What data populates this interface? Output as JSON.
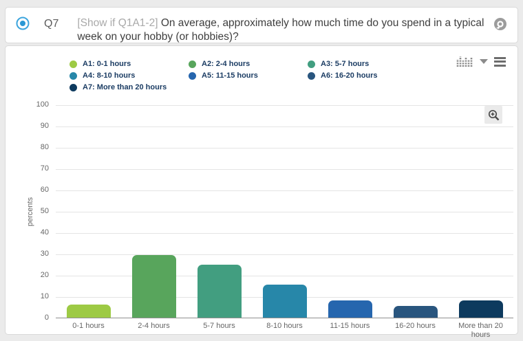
{
  "header": {
    "question_id": "Q7",
    "condition_tag": "[Show if Q1A1-2]",
    "question_text": "On average, approximately how much time do you spend in a typical week on your hobby (or hobbies)?"
  },
  "icons": {
    "radio_selected": "blue-radio-selected",
    "question_action": "comment-bubble",
    "chart_type": "column-chart",
    "chart_type_caret": "▼",
    "menu": "hamburger",
    "zoom": "zoom-in-magnifier"
  },
  "legend": {
    "items": [
      {
        "label": "A1: 0-1 hours",
        "color": "#9dca44"
      },
      {
        "label": "A2: 2-4 hours",
        "color": "#58a55c"
      },
      {
        "label": "A3: 5-7 hours",
        "color": "#429e80"
      },
      {
        "label": "A4: 8-10 hours",
        "color": "#2787a9"
      },
      {
        "label": "A5: 11-15 hours",
        "color": "#2666ae"
      },
      {
        "label": "A6: 16-20 hours",
        "color": "#29557e"
      },
      {
        "label": "A7: More than 20 hours",
        "color": "#0d3a5e"
      }
    ]
  },
  "chart_data": {
    "type": "bar",
    "categories": [
      "0-1 hours",
      "2-4 hours",
      "5-7 hours",
      "8-10 hours",
      "11-15 hours",
      "16-20 hours",
      "More than 20 hours"
    ],
    "values": [
      6,
      29.5,
      25,
      15.5,
      8,
      5.5,
      8
    ],
    "series_colors": [
      "#9dca44",
      "#58a55c",
      "#429e80",
      "#2787a9",
      "#2666ae",
      "#29557e",
      "#0d3a5e"
    ],
    "title": "",
    "xlabel": "",
    "ylabel": "percents",
    "ylim": [
      0,
      100
    ],
    "ytick_step": 10,
    "grid": true,
    "legend_position": "top"
  }
}
